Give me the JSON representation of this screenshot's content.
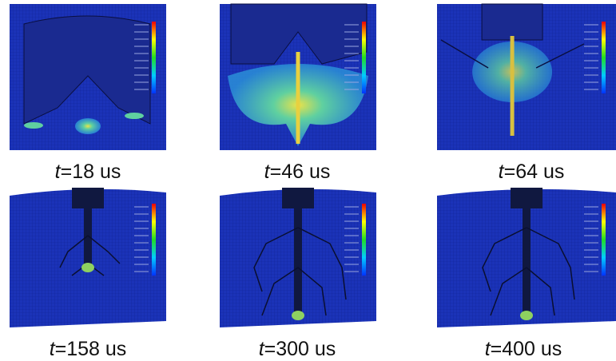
{
  "panels": [
    {
      "symbol": "t",
      "time": "=18 us"
    },
    {
      "symbol": "t",
      "time": "=46 us"
    },
    {
      "symbol": "t",
      "time": "=64 us"
    },
    {
      "symbol": "t",
      "time": "=158 us"
    },
    {
      "symbol": "t",
      "time": "=300 us"
    },
    {
      "symbol": "t",
      "time": "=400 us"
    }
  ]
}
